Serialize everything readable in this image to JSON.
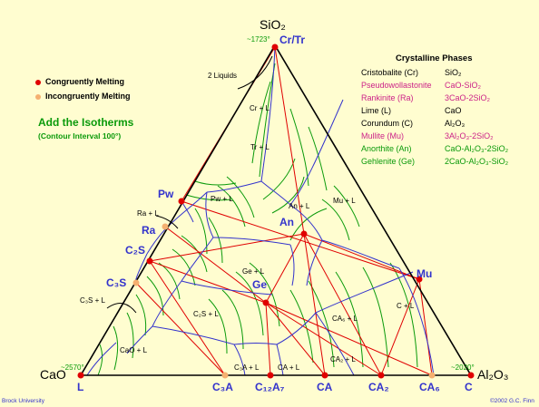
{
  "vertices": {
    "top": "SiO₂",
    "left": "CaO",
    "right": "Al₂O₃"
  },
  "temperatures": {
    "top": "~1723°",
    "left": "~2570°",
    "right": "~2020°"
  },
  "key": {
    "congruent": "Congruently Melting",
    "incongruent": "Incongruently Melting",
    "congruent_color": "#e00000",
    "incongruent_color": "#f5b070"
  },
  "instruction": {
    "title": "Add the Isotherms",
    "subtitle": "(Contour Interval 100°)"
  },
  "phases_title": "Crystalline Phases",
  "phases": [
    {
      "name": "Cristobalite (Cr)",
      "formula": "SiO₂",
      "color": "#000000"
    },
    {
      "name": "Pseudowollastonite",
      "formula": "CaO-SiO₂",
      "color": "#cc2288"
    },
    {
      "name": "Rankinite (Ra)",
      "formula": "3CaO-2SiO₂",
      "color": "#cc2288"
    },
    {
      "name": "Lime (L)",
      "formula": "CaO",
      "color": "#000000"
    },
    {
      "name": "Corundum (C)",
      "formula": "Al₂O₃",
      "color": "#000000"
    },
    {
      "name": "Mullite (Mu)",
      "formula": "3Al₂O₃-2SiO₂",
      "color": "#cc2288"
    },
    {
      "name": "Anorthite (An)",
      "formula": "CaO-Al₂O₃-2SiO₂",
      "color": "#0a9a0a"
    },
    {
      "name": "Gehlenite (Ge)",
      "formula": "2CaO-Al₂O₃-SiO₂",
      "color": "#0a9a0a"
    }
  ],
  "compounds": {
    "cr_tr": "Cr/Tr",
    "pw": "Pw",
    "ra": "Ra",
    "c2s": "C₂S",
    "c3s": "C₃S",
    "an": "An",
    "ge": "Ge",
    "mu": "Mu",
    "l": "L",
    "c3a": "C₃A",
    "c12a7": "C₁₂A₇",
    "ca": "CA",
    "ca2": "CA₂",
    "ca6": "CA₆",
    "c": "C"
  },
  "fields": {
    "two_liquids": "2 Liquids",
    "cr_l": "Cr + L",
    "tr_l": "Tr + L",
    "pw_l": "Pw + L",
    "ra_l": "Ra + L",
    "an_l": "An + L",
    "mu_l": "Mu + L",
    "ge_l": "Ge + L",
    "c2s_l": "C₂S + L",
    "c3s_l": "C₃S + L",
    "cao_l": "CaO + L",
    "ca6_l": "CA₆ + L",
    "c_l": "C + L",
    "ca2_l": "CA₂ + L",
    "c3a_l": "C₃A + L",
    "ca_l": "CA + L"
  },
  "footer": {
    "left": "Brock University",
    "right": "©2002 G.C. Finn"
  }
}
